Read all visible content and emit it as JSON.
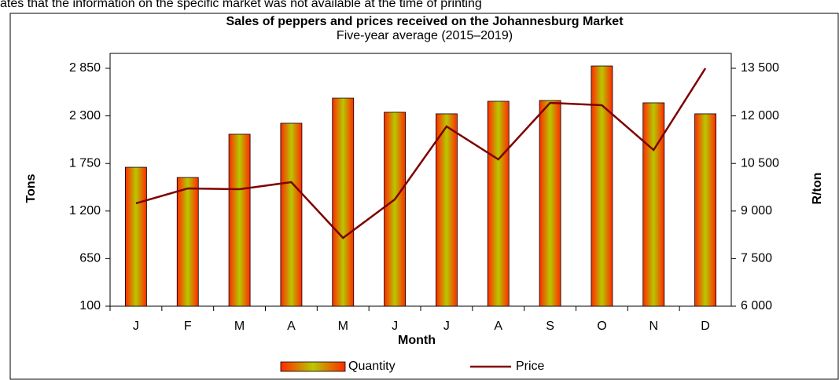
{
  "note": "ates that the information on the specific market was not available at the time of printing",
  "chart_data": {
    "type": "bar-line",
    "title": "Sales of peppers and prices received on the Johannesburg Market",
    "subtitle": "Five-year average (2015–2019)",
    "x_label": "Month",
    "y_label": "Tons",
    "y2_label": "R/ton",
    "categories": [
      "J",
      "F",
      "M",
      "A",
      "M",
      "J",
      "J",
      "A",
      "S",
      "O",
      "N",
      "D"
    ],
    "series": [
      {
        "name": "Quantity",
        "type": "bar",
        "color": "#ff3300",
        "values": [
          1706,
          1588,
          2088,
          2215,
          2505,
          2342,
          2324,
          2469,
          2478,
          2877,
          2451,
          2324
        ]
      },
      {
        "name": "Price",
        "type": "line",
        "axis": "y2",
        "color": "#800000",
        "values": [
          9243,
          9713,
          9688,
          9911,
          8153,
          9366,
          11668,
          10628,
          12411,
          12336,
          10925,
          13500
        ]
      }
    ],
    "ylim": [
      100,
      2850
    ],
    "yticks": [
      100,
      650,
      {
        "value": 1200,
        "label": "1 200"
      },
      {
        "value": 1750,
        "label": "1 750"
      },
      {
        "value": 2300,
        "label": "2 300"
      },
      {
        "value": 2850,
        "label": "2 850"
      }
    ],
    "y2lim": [
      6000,
      13500
    ],
    "y2ticks": [
      {
        "value": 6000,
        "label": "6 000"
      },
      {
        "value": 7500,
        "label": "7 500"
      },
      {
        "value": 9000,
        "label": "9 000"
      },
      {
        "value": 10500,
        "label": "10 500"
      },
      {
        "value": 12000,
        "label": "12 000"
      },
      {
        "value": 13500,
        "label": "13 500"
      }
    ],
    "legend": "bottom"
  }
}
